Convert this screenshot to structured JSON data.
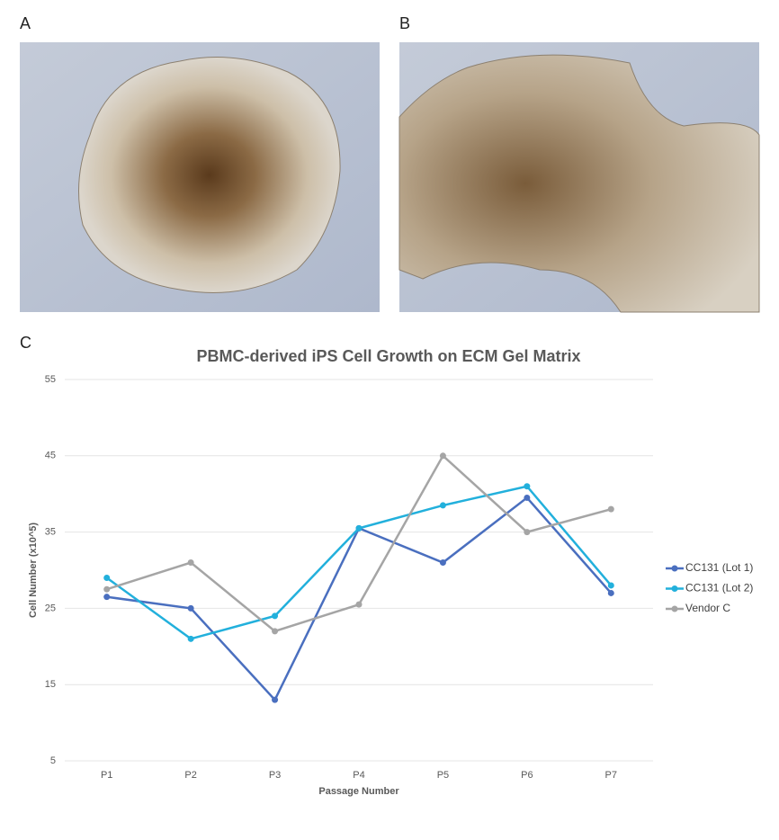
{
  "panels": [
    "A",
    "B",
    "C"
  ],
  "chart_data": {
    "type": "line",
    "title": "PBMC-derived iPS Cell Growth on ECM Gel Matrix",
    "x_label": "Passage Number",
    "y_label": "Cell Number (x10^5)",
    "categories": [
      "P1",
      "P2",
      "P3",
      "P4",
      "P5",
      "P6",
      "P7"
    ],
    "series": [
      {
        "name": "CC131 (Lot 1)",
        "color": "#4a6fbf",
        "values": [
          26.5,
          25,
          13,
          35.5,
          31,
          39.5,
          27
        ]
      },
      {
        "name": "CC131 (Lot 2)",
        "color": "#22b0dc",
        "values": [
          29,
          21,
          24,
          35.5,
          38.5,
          41,
          28
        ]
      },
      {
        "name": "Vendor C",
        "color": "#a5a5a5",
        "values": [
          27.5,
          31,
          22,
          25.5,
          45,
          35,
          38
        ]
      }
    ],
    "ylim": [
      5,
      55
    ],
    "yticks": [
      5,
      15,
      25,
      35,
      45,
      55
    ],
    "grid": true,
    "legend": "right"
  }
}
